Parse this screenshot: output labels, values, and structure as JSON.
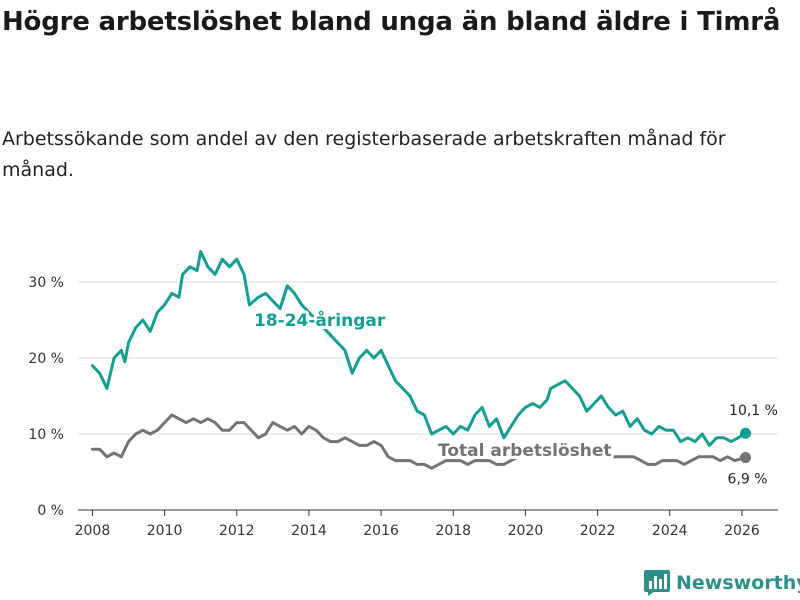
{
  "title": "Högre arbetslöshet bland unga än bland äldre i Timrå",
  "subtitle": "Arbetssökande som andel av den registerbaserade arbetskraften månad för månad.",
  "brand": {
    "name": "Newsworthy",
    "icon": "bar-chart-logo-icon"
  },
  "colors": {
    "youth": "#139e93",
    "total": "#737373",
    "grid": "#dcdcdc",
    "axis": "#333333",
    "brand": "#2d8f89"
  },
  "chart_data": {
    "type": "line",
    "title": "Högre arbetslöshet bland unga än bland äldre i Timrå",
    "xlabel": "",
    "ylabel": "",
    "xlim": [
      2007.6,
      2027.0
    ],
    "ylim": [
      0,
      30
    ],
    "x_ticks": [
      2008,
      2010,
      2012,
      2014,
      2016,
      2018,
      2020,
      2022,
      2024,
      2026
    ],
    "x_tick_labels": [
      "2008",
      "2010",
      "2012",
      "2014",
      "2016",
      "2018",
      "2020",
      "2022",
      "2024",
      "2026"
    ],
    "y_ticks": [
      0,
      10,
      20,
      30
    ],
    "y_tick_labels": [
      "0 %",
      "10 %",
      "20 %",
      "30 %"
    ],
    "grid": true,
    "series": [
      {
        "name": "18-24-åringar",
        "label": "18-24-åringar",
        "end_label": "10,1 %",
        "points": [
          [
            2008.0,
            19.0
          ],
          [
            2008.2,
            18.0
          ],
          [
            2008.4,
            16.0
          ],
          [
            2008.6,
            20.0
          ],
          [
            2008.8,
            21.0
          ],
          [
            2008.9,
            19.5
          ],
          [
            2009.0,
            22.0
          ],
          [
            2009.2,
            24.0
          ],
          [
            2009.4,
            25.0
          ],
          [
            2009.6,
            23.5
          ],
          [
            2009.8,
            26.0
          ],
          [
            2010.0,
            27.0
          ],
          [
            2010.2,
            28.5
          ],
          [
            2010.4,
            28.0
          ],
          [
            2010.5,
            31.0
          ],
          [
            2010.7,
            32.0
          ],
          [
            2010.9,
            31.5
          ],
          [
            2011.0,
            34.0
          ],
          [
            2011.2,
            32.0
          ],
          [
            2011.4,
            31.0
          ],
          [
            2011.6,
            33.0
          ],
          [
            2011.8,
            32.0
          ],
          [
            2012.0,
            33.0
          ],
          [
            2012.2,
            31.0
          ],
          [
            2012.35,
            27.0
          ],
          [
            2012.6,
            28.0
          ],
          [
            2012.8,
            28.5
          ],
          [
            2013.0,
            27.5
          ],
          [
            2013.2,
            26.5
          ],
          [
            2013.4,
            29.5
          ],
          [
            2013.6,
            28.5
          ],
          [
            2013.8,
            27.0
          ],
          [
            2014.0,
            26.0
          ],
          [
            2014.2,
            25.0
          ],
          [
            2014.4,
            24.0
          ],
          [
            2014.6,
            23.0
          ],
          [
            2014.8,
            22.0
          ],
          [
            2015.0,
            21.0
          ],
          [
            2015.2,
            18.0
          ],
          [
            2015.4,
            20.0
          ],
          [
            2015.6,
            21.0
          ],
          [
            2015.8,
            20.0
          ],
          [
            2016.0,
            21.0
          ],
          [
            2016.2,
            19.0
          ],
          [
            2016.4,
            17.0
          ],
          [
            2016.6,
            16.0
          ],
          [
            2016.8,
            15.0
          ],
          [
            2017.0,
            13.0
          ],
          [
            2017.2,
            12.5
          ],
          [
            2017.4,
            10.0
          ],
          [
            2017.6,
            10.5
          ],
          [
            2017.8,
            11.0
          ],
          [
            2018.0,
            10.0
          ],
          [
            2018.2,
            11.0
          ],
          [
            2018.4,
            10.5
          ],
          [
            2018.6,
            12.5
          ],
          [
            2018.8,
            13.5
          ],
          [
            2019.0,
            11.0
          ],
          [
            2019.2,
            12.0
          ],
          [
            2019.4,
            9.5
          ],
          [
            2019.6,
            11.0
          ],
          [
            2019.8,
            12.5
          ],
          [
            2020.0,
            13.5
          ],
          [
            2020.2,
            14.0
          ],
          [
            2020.4,
            13.5
          ],
          [
            2020.6,
            14.5
          ],
          [
            2020.7,
            16.0
          ],
          [
            2020.9,
            16.5
          ],
          [
            2021.1,
            17.0
          ],
          [
            2021.3,
            16.0
          ],
          [
            2021.5,
            15.0
          ],
          [
            2021.7,
            13.0
          ],
          [
            2021.9,
            14.0
          ],
          [
            2022.1,
            15.0
          ],
          [
            2022.3,
            13.5
          ],
          [
            2022.5,
            12.5
          ],
          [
            2022.7,
            13.0
          ],
          [
            2022.9,
            11.0
          ],
          [
            2023.1,
            12.0
          ],
          [
            2023.3,
            10.5
          ],
          [
            2023.5,
            10.0
          ],
          [
            2023.7,
            11.0
          ],
          [
            2023.9,
            10.5
          ],
          [
            2024.1,
            10.5
          ],
          [
            2024.3,
            9.0
          ],
          [
            2024.5,
            9.5
          ],
          [
            2024.7,
            9.0
          ],
          [
            2024.9,
            10.0
          ],
          [
            2025.1,
            8.5
          ],
          [
            2025.3,
            9.5
          ],
          [
            2025.5,
            9.5
          ],
          [
            2025.7,
            9.0
          ],
          [
            2025.9,
            9.5
          ],
          [
            2026.1,
            10.1
          ]
        ]
      },
      {
        "name": "Total arbetslöshet",
        "label": "Total arbetslöshet",
        "end_label": "6,9 %",
        "points": [
          [
            2008.0,
            8.0
          ],
          [
            2008.2,
            8.0
          ],
          [
            2008.4,
            7.0
          ],
          [
            2008.6,
            7.5
          ],
          [
            2008.8,
            7.0
          ],
          [
            2009.0,
            9.0
          ],
          [
            2009.2,
            10.0
          ],
          [
            2009.4,
            10.5
          ],
          [
            2009.6,
            10.0
          ],
          [
            2009.8,
            10.5
          ],
          [
            2010.0,
            11.5
          ],
          [
            2010.2,
            12.5
          ],
          [
            2010.4,
            12.0
          ],
          [
            2010.6,
            11.5
          ],
          [
            2010.8,
            12.0
          ],
          [
            2011.0,
            11.5
          ],
          [
            2011.2,
            12.0
          ],
          [
            2011.4,
            11.5
          ],
          [
            2011.6,
            10.5
          ],
          [
            2011.8,
            10.5
          ],
          [
            2012.0,
            11.5
          ],
          [
            2012.2,
            11.5
          ],
          [
            2012.4,
            10.5
          ],
          [
            2012.6,
            9.5
          ],
          [
            2012.8,
            10.0
          ],
          [
            2013.0,
            11.5
          ],
          [
            2013.2,
            11.0
          ],
          [
            2013.4,
            10.5
          ],
          [
            2013.6,
            11.0
          ],
          [
            2013.8,
            10.0
          ],
          [
            2014.0,
            11.0
          ],
          [
            2014.2,
            10.5
          ],
          [
            2014.4,
            9.5
          ],
          [
            2014.6,
            9.0
          ],
          [
            2014.8,
            9.0
          ],
          [
            2015.0,
            9.5
          ],
          [
            2015.2,
            9.0
          ],
          [
            2015.4,
            8.5
          ],
          [
            2015.6,
            8.5
          ],
          [
            2015.8,
            9.0
          ],
          [
            2016.0,
            8.5
          ],
          [
            2016.2,
            7.0
          ],
          [
            2016.4,
            6.5
          ],
          [
            2016.6,
            6.5
          ],
          [
            2016.8,
            6.5
          ],
          [
            2017.0,
            6.0
          ],
          [
            2017.2,
            6.0
          ],
          [
            2017.4,
            5.5
          ],
          [
            2017.6,
            6.0
          ],
          [
            2017.8,
            6.5
          ],
          [
            2018.0,
            6.5
          ],
          [
            2018.2,
            6.5
          ],
          [
            2018.4,
            6.0
          ],
          [
            2018.6,
            6.5
          ],
          [
            2018.8,
            6.5
          ],
          [
            2019.0,
            6.5
          ],
          [
            2019.2,
            6.0
          ],
          [
            2019.4,
            6.0
          ],
          [
            2019.6,
            6.5
          ],
          [
            2019.8,
            7.0
          ],
          [
            2020.0,
            7.5
          ],
          [
            2020.2,
            7.5
          ],
          [
            2020.4,
            8.0
          ],
          [
            2020.6,
            8.0
          ],
          [
            2020.8,
            8.0
          ],
          [
            2021.0,
            8.5
          ],
          [
            2021.2,
            8.0
          ],
          [
            2021.4,
            8.0
          ],
          [
            2021.6,
            7.5
          ],
          [
            2021.8,
            7.5
          ],
          [
            2022.0,
            7.5
          ],
          [
            2022.2,
            7.5
          ],
          [
            2022.4,
            7.0
          ],
          [
            2022.6,
            7.0
          ],
          [
            2022.8,
            7.0
          ],
          [
            2023.0,
            7.0
          ],
          [
            2023.2,
            6.5
          ],
          [
            2023.4,
            6.0
          ],
          [
            2023.6,
            6.0
          ],
          [
            2023.8,
            6.5
          ],
          [
            2024.0,
            6.5
          ],
          [
            2024.2,
            6.5
          ],
          [
            2024.4,
            6.0
          ],
          [
            2024.6,
            6.5
          ],
          [
            2024.8,
            7.0
          ],
          [
            2025.0,
            7.0
          ],
          [
            2025.2,
            7.0
          ],
          [
            2025.4,
            6.5
          ],
          [
            2025.6,
            7.0
          ],
          [
            2025.8,
            6.5
          ],
          [
            2026.1,
            6.9
          ]
        ]
      }
    ]
  }
}
